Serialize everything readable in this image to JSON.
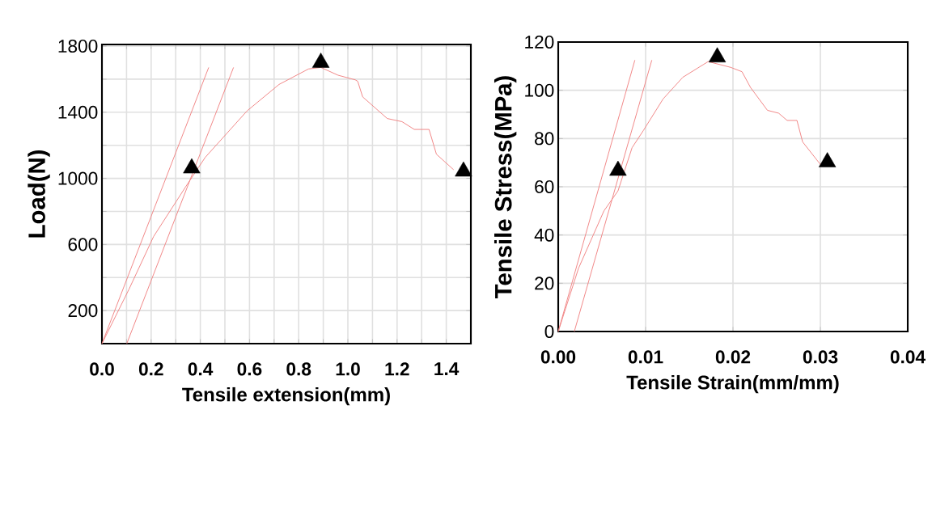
{
  "chart_data": [
    {
      "type": "line",
      "xlabel": "Tensile extension(mm)",
      "ylabel": "Load(N)",
      "xlim": [
        0,
        1.5
      ],
      "ylim": [
        0,
        1810
      ],
      "xticks": [
        {
          "value": 0,
          "label": "0.0"
        },
        {
          "value": 0.1,
          "label": null
        },
        {
          "value": 0.2,
          "label": "0.2"
        },
        {
          "value": 0.3,
          "label": null
        },
        {
          "value": 0.4,
          "label": "0.4"
        },
        {
          "value": 0.5,
          "label": null
        },
        {
          "value": 0.6,
          "label": "0.6"
        },
        {
          "value": 0.7,
          "label": null
        },
        {
          "value": 0.8,
          "label": "0.8"
        },
        {
          "value": 0.9,
          "label": null
        },
        {
          "value": 1.0,
          "label": "1.0"
        },
        {
          "value": 1.1,
          "label": null
        },
        {
          "value": 1.2,
          "label": "1.2"
        },
        {
          "value": 1.3,
          "label": null
        },
        {
          "value": 1.4,
          "label": "1.4"
        },
        {
          "value": 1.5,
          "label": null
        }
      ],
      "yticks": [
        200,
        {
          "value": 400,
          "label": null
        },
        600,
        {
          "value": 800,
          "label": null
        },
        1000,
        {
          "value": 1200,
          "label": null
        },
        1400,
        {
          "value": 1600,
          "label": null
        },
        1800
      ],
      "grid": true,
      "series": [
        {
          "color": "#f08080",
          "x": [
            0,
            0.11,
            0.21,
            0.34,
            0.42,
            0.59,
            0.72,
            0.84,
            0.89,
            0.96,
            1.03,
            1.04,
            1.06,
            1.16,
            1.22,
            1.27,
            1.33,
            1.36,
            1.43
          ],
          "values": [
            0,
            329,
            648,
            948,
            1127,
            1408,
            1568,
            1662,
            1671,
            1624,
            1596,
            1587,
            1493,
            1362,
            1343,
            1296,
            1296,
            1146,
            1052
          ]
        },
        {
          "color": "#f08080",
          "x": [
            0,
            0.434
          ],
          "values": [
            0,
            1671
          ]
        },
        {
          "color": "#f08080",
          "x": [
            0.101,
            0.535
          ],
          "values": [
            0,
            1671
          ]
        },
        {
          "type": "scatter",
          "color": "#000000",
          "marker": "triangle",
          "x": [
            0.89,
            0.365,
            1.47
          ],
          "values": [
            1700,
            1061,
            1042
          ]
        }
      ]
    },
    {
      "type": "line",
      "xlabel": "Tensile Strain(mm/mm)",
      "ylabel": "Tensile Stress(MPa)",
      "xlim": [
        0,
        0.04
      ],
      "ylim": [
        0,
        120
      ],
      "xticks": [
        {
          "value": 0,
          "label": "0.00"
        },
        {
          "value": 0.01,
          "label": "0.01"
        },
        {
          "value": 0.02,
          "label": "0.02"
        },
        {
          "value": 0.03,
          "label": "0.03"
        },
        {
          "value": 0.04,
          "label": "0.04"
        }
      ],
      "yticks": [
        0,
        20,
        40,
        60,
        80,
        100,
        120
      ],
      "grid": true,
      "series": [
        {
          "color": "#f08080",
          "x": [
            0,
            0.00232,
            0.00523,
            0.00684,
            0.00845,
            0.00974,
            0.012,
            0.01426,
            0.01716,
            0.01974,
            0.02103,
            0.022,
            0.02394,
            0.02523,
            0.0262,
            0.02732,
            0.02797,
            0.03006
          ],
          "values": [
            0,
            26.2,
            50,
            58.3,
            76.2,
            83.3,
            96.4,
            105.4,
            111.9,
            109.5,
            107.7,
            101.2,
            91.7,
            90.5,
            87.5,
            87.5,
            78.6,
            69
          ]
        },
        {
          "color": "#f08080",
          "x": [
            0,
            0.00877
          ],
          "values": [
            0,
            112.5
          ]
        },
        {
          "color": "#f08080",
          "x": [
            0.00184,
            0.01071
          ],
          "values": [
            0,
            112.5
          ]
        },
        {
          "type": "scatter",
          "color": "#000000",
          "marker": "triangle",
          "x": [
            0.0182,
            0.00684,
            0.0308
          ],
          "values": [
            113.7,
            66.7,
            70.2
          ]
        }
      ]
    }
  ]
}
